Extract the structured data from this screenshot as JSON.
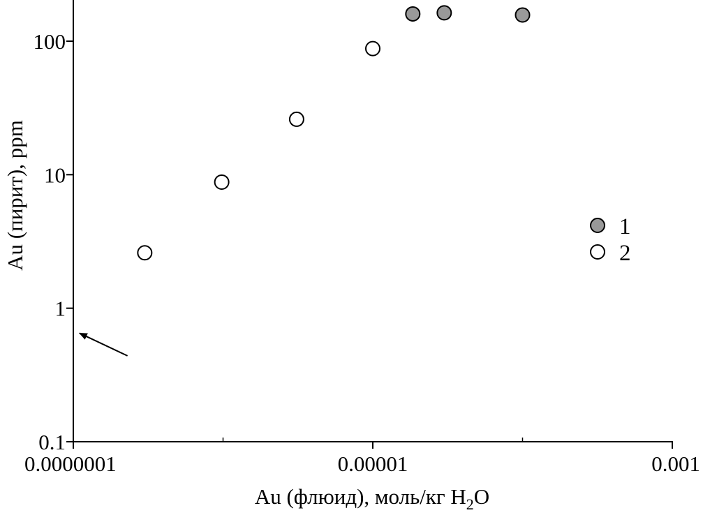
{
  "chart_data": {
    "type": "scatter",
    "xlabel": "Au (флюид), моль/кг H",
    "xlabel_sub": "2",
    "xlabel_tail": "O",
    "ylabel": "Au (пирит), ppm",
    "x_scale": "log",
    "y_scale": "log",
    "xlim": [
      1e-07,
      0.001
    ],
    "ylim": [
      0.1,
      200
    ],
    "x_ticks": [
      {
        "value": 1e-07,
        "label": "0.0000001"
      },
      {
        "value": 1e-05,
        "label": "0.00001"
      },
      {
        "value": 0.001,
        "label": "0.001"
      }
    ],
    "y_ticks": [
      {
        "value": 0.1,
        "label": "0.1"
      },
      {
        "value": 1,
        "label": "1"
      },
      {
        "value": 10,
        "label": "10"
      },
      {
        "value": 100,
        "label": "100"
      }
    ],
    "grid": false,
    "legend_position": "right",
    "series": [
      {
        "name": "1",
        "color": "#999999",
        "points": [
          {
            "x": 1.85e-05,
            "y": 160
          },
          {
            "x": 3e-05,
            "y": 163
          },
          {
            "x": 0.0001,
            "y": 157
          }
        ]
      },
      {
        "name": "2",
        "color": "#ffffff",
        "points": [
          {
            "x": 3e-07,
            "y": 2.6
          },
          {
            "x": 9.8e-07,
            "y": 8.8
          },
          {
            "x": 3.1e-06,
            "y": 26
          },
          {
            "x": 1e-05,
            "y": 88
          }
        ]
      }
    ],
    "annotations": [
      {
        "type": "arrow",
        "from": {
          "x": 2.3e-07,
          "y": 0.44
        },
        "to": {
          "x": 1.1e-07,
          "y": 0.65
        }
      }
    ]
  }
}
